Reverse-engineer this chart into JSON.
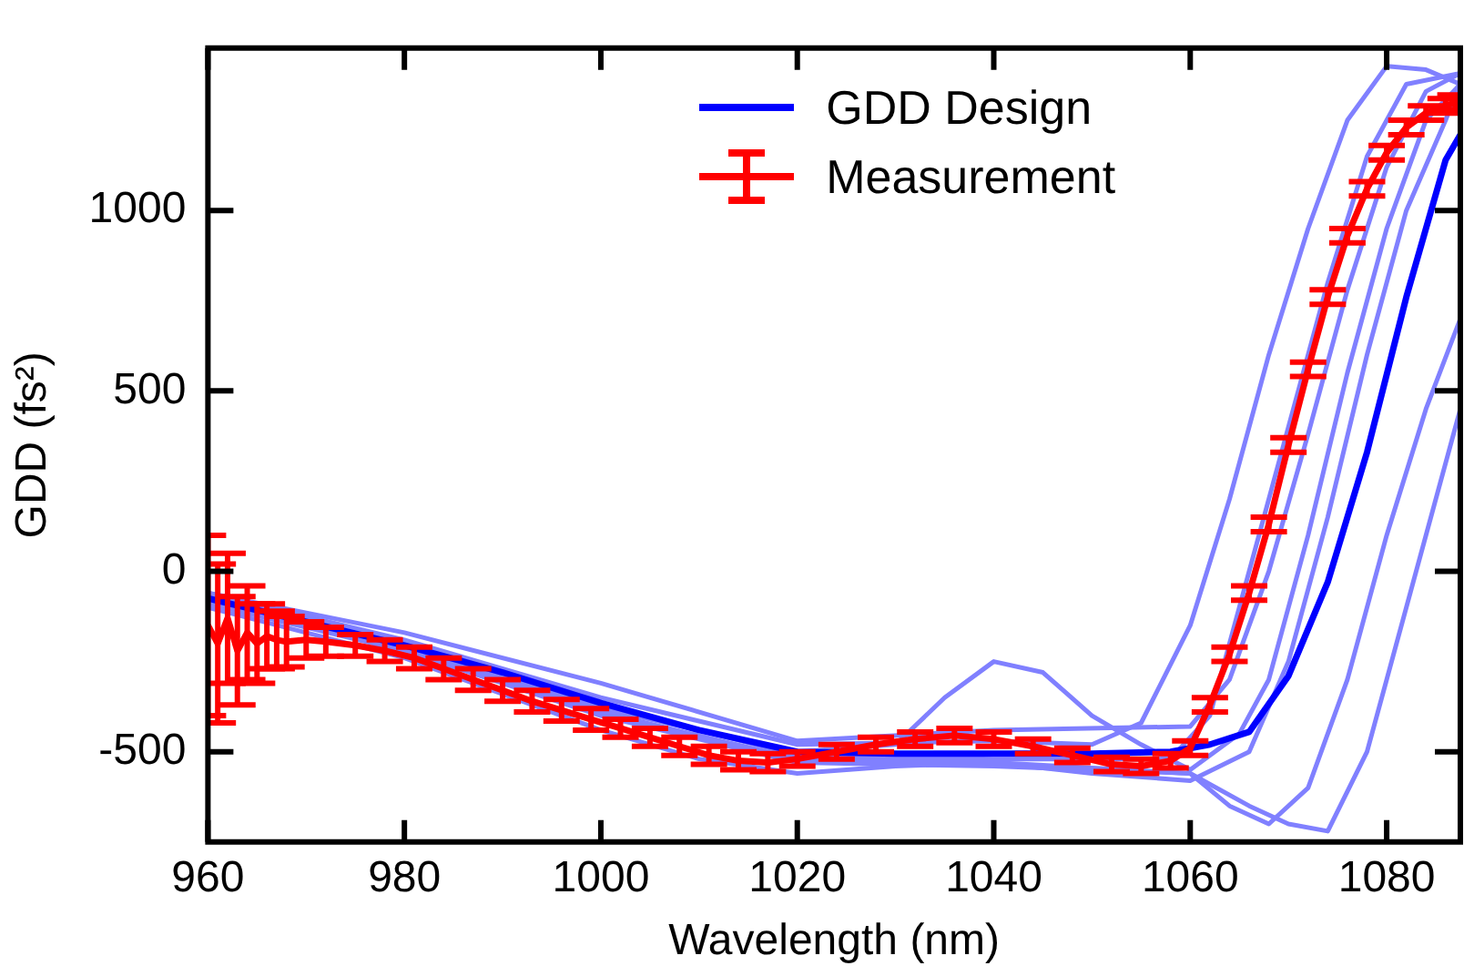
{
  "chart_data": {
    "type": "line",
    "xlabel": "Wavelength (nm)",
    "ylabel": "GDD (fs²)",
    "xlim": [
      960,
      1087.5
    ],
    "xticks": [
      960,
      980,
      1000,
      1020,
      1040,
      1060,
      1080
    ],
    "ylim": [
      -750,
      1450
    ],
    "yticks": [
      -500,
      0,
      500,
      1000
    ],
    "legend": "top",
    "line_style": "solid",
    "series": [
      {
        "color": "#8080ff",
        "x": [
          960,
          980,
          1000,
          1020,
          1040,
          1050,
          1055,
          1060,
          1064,
          1068,
          1072,
          1076,
          1080,
          1084,
          1087.5
        ],
        "values": [
          -60,
          -190,
          -350,
          -480,
          -470,
          -480,
          -420,
          -150,
          200,
          600,
          950,
          1250,
          1400,
          1390,
          1350
        ]
      },
      {
        "color": "#8080ff",
        "x": [
          960,
          980,
          1000,
          1020,
          1040,
          1058,
          1062,
          1066,
          1070,
          1074,
          1078,
          1082,
          1087.5
        ],
        "values": [
          -80,
          -200,
          -370,
          -510,
          -520,
          -520,
          -400,
          0,
          400,
          800,
          1150,
          1350,
          1380
        ]
      },
      {
        "color": "#8080ff",
        "x": [
          960,
          980,
          1000,
          1020,
          1030,
          1035,
          1040,
          1045,
          1050,
          1055,
          1060,
          1065,
          1068,
          1072,
          1076,
          1080,
          1084,
          1087.5
        ],
        "values": [
          -70,
          -210,
          -380,
          -500,
          -480,
          -350,
          -250,
          -280,
          -400,
          -480,
          -550,
          -450,
          -300,
          100,
          550,
          950,
          1250,
          1350
        ]
      },
      {
        "color": "#8080ff",
        "x": [
          960,
          980,
          1000,
          1020,
          1040,
          1060,
          1064,
          1068,
          1072,
          1076,
          1080,
          1084,
          1087.5
        ],
        "values": [
          -90,
          -220,
          -400,
          -530,
          -540,
          -560,
          -650,
          -700,
          -600,
          -300,
          100,
          450,
          700
        ]
      },
      {
        "color": "#8080ff",
        "x": [
          960,
          980,
          1000,
          1020,
          1040,
          1060,
          1066,
          1070,
          1074,
          1078,
          1082,
          1086,
          1087.5
        ],
        "values": [
          -85,
          -215,
          -390,
          -520,
          -530,
          -560,
          -650,
          -700,
          -720,
          -500,
          -100,
          300,
          450
        ]
      },
      {
        "color": "#8080ff",
        "x": [
          960,
          980,
          1000,
          1010,
          1020,
          1030,
          1040,
          1050,
          1060,
          1066,
          1070,
          1074,
          1078,
          1082,
          1086,
          1087.5
        ],
        "values": [
          -100,
          -240,
          -440,
          -520,
          -560,
          -540,
          -530,
          -560,
          -580,
          -500,
          -250,
          150,
          600,
          1000,
          1250,
          1360
        ]
      },
      {
        "color": "#8080ff",
        "x": [
          960,
          980,
          1000,
          1020,
          1040,
          1060,
          1064,
          1068,
          1072,
          1076,
          1080,
          1084,
          1087.5
        ],
        "values": [
          -60,
          -170,
          -310,
          -470,
          -440,
          -430,
          -300,
          0,
          380,
          780,
          1120,
          1330,
          1380
        ]
      },
      {
        "name": "GDD Design",
        "color": "#0000ff",
        "x": [
          960,
          970,
          980,
          990,
          1000,
          1010,
          1020,
          1030,
          1040,
          1050,
          1058,
          1062,
          1066,
          1070,
          1074,
          1078,
          1082,
          1086,
          1087.5
        ],
        "values": [
          -75,
          -140,
          -205,
          -280,
          -365,
          -440,
          -500,
          -505,
          -505,
          -505,
          -500,
          -480,
          -445,
          -290,
          -30,
          330,
          760,
          1140,
          1210
        ]
      },
      {
        "name": "Measurement",
        "color": "#ff0000",
        "x": [
          960,
          961,
          962,
          963,
          964,
          965,
          966,
          967,
          968,
          970,
          972,
          975,
          978,
          981,
          984,
          987,
          990,
          993,
          996,
          999,
          1002,
          1005,
          1008,
          1011,
          1014,
          1017,
          1020,
          1024,
          1028,
          1032,
          1036,
          1040,
          1044,
          1048,
          1052,
          1055,
          1058,
          1060,
          1062,
          1064,
          1066,
          1068,
          1070,
          1072,
          1074,
          1076,
          1078,
          1080,
          1082,
          1084,
          1086,
          1087
        ],
        "values": [
          -150,
          -200,
          -130,
          -220,
          -170,
          -200,
          -180,
          -190,
          -195,
          -190,
          -195,
          -205,
          -220,
          -240,
          -270,
          -300,
          -330,
          -360,
          -385,
          -410,
          -435,
          -460,
          -485,
          -510,
          -525,
          -530,
          -520,
          -500,
          -480,
          -465,
          -455,
          -465,
          -485,
          -510,
          -535,
          -540,
          -525,
          -490,
          -370,
          -230,
          -60,
          130,
          350,
          560,
          760,
          930,
          1060,
          1160,
          1230,
          1270,
          1290,
          1300
        ],
        "errors": [
          250,
          220,
          180,
          150,
          130,
          110,
          90,
          80,
          70,
          50,
          40,
          30,
          30,
          30,
          30,
          30,
          30,
          30,
          30,
          30,
          25,
          25,
          25,
          25,
          25,
          25,
          20,
          20,
          20,
          20,
          20,
          20,
          20,
          20,
          20,
          20,
          20,
          20,
          20,
          20,
          20,
          20,
          20,
          20,
          20,
          20,
          20,
          20,
          20,
          20,
          20,
          20
        ]
      }
    ]
  }
}
